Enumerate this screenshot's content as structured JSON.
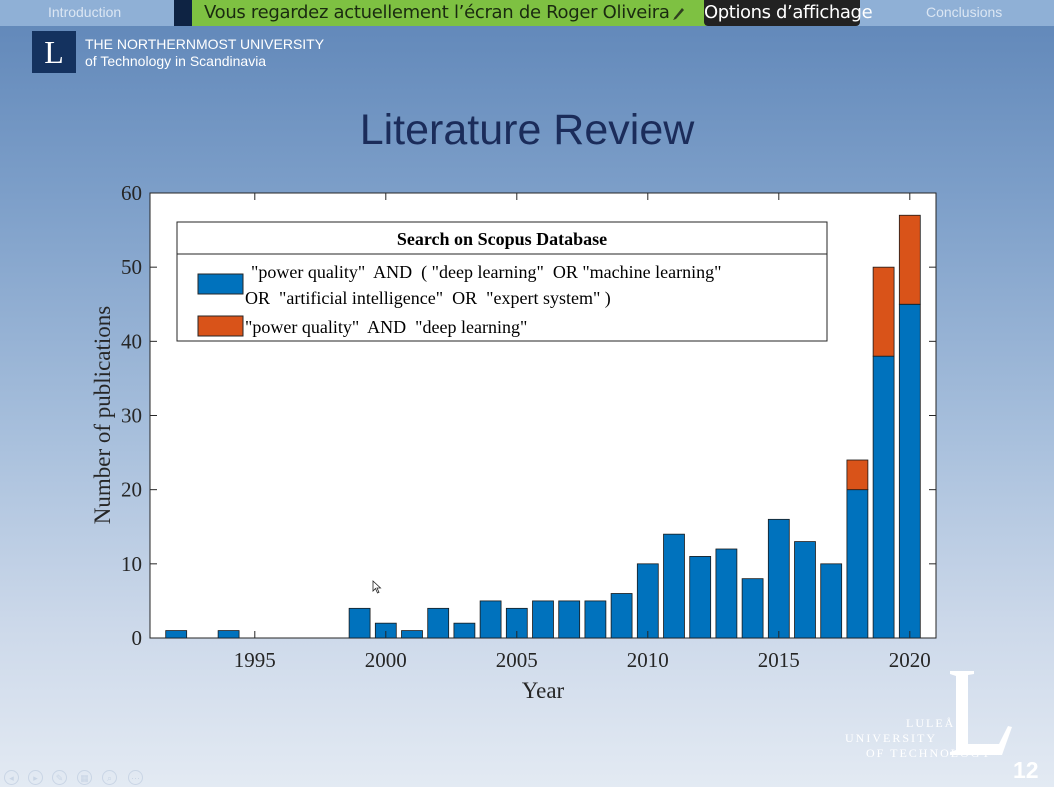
{
  "nav": {
    "left_section": "Introduction",
    "right_section": "Conclusions"
  },
  "share_banner": {
    "text": "Vous regardez actuellement l’écran de Roger Oliveira",
    "options_label": "Options d’affichage"
  },
  "header": {
    "logo_letter": "L",
    "line1": "THE NORTHERNMOST UNIVERSITY",
    "line2": "of Technology in Scandinavia"
  },
  "slide": {
    "title": "Literature Review",
    "page_number": "12"
  },
  "footer_logo": {
    "line1": "LULEÅ",
    "line2": "UNIVERSITY",
    "line3": "OF TECHNOLOGY"
  },
  "colors": {
    "series1": "#0072bd",
    "series2": "#d95319"
  },
  "controls": [
    "previous-icon",
    "next-icon",
    "pen-icon",
    "slides-icon",
    "zoom-icon",
    "more-icon"
  ],
  "chart_data": {
    "type": "bar",
    "stacked": true,
    "x": [
      1992,
      1994,
      1999,
      2000,
      2001,
      2002,
      2003,
      2004,
      2005,
      2006,
      2007,
      2008,
      2009,
      2010,
      2011,
      2012,
      2013,
      2014,
      2015,
      2016,
      2017,
      2018,
      2019,
      2020
    ],
    "series": [
      {
        "name": "\"power quality\"  AND  ( \"deep learning\"  OR \"machine learning\"  OR  \"artificial intelligence\"  OR  \"expert system\" )",
        "legend_line1": "\"power quality\"  AND  ( \"deep learning\"  OR \"machine learning\"",
        "legend_line2": "OR  \"artificial intelligence\"  OR  \"expert system\" )",
        "values": [
          1,
          1,
          4,
          2,
          1,
          4,
          2,
          5,
          4,
          5,
          5,
          5,
          6,
          10,
          14,
          11,
          12,
          8,
          16,
          13,
          10,
          20,
          38,
          45
        ]
      },
      {
        "name": "\"power quality\"  AND  \"deep learning\"",
        "values": [
          0,
          0,
          0,
          0,
          0,
          0,
          0,
          0,
          0,
          0,
          0,
          0,
          0,
          0,
          0,
          0,
          0,
          0,
          0,
          0,
          0,
          4,
          12,
          12
        ]
      }
    ],
    "legend_title": "Search on Scopus Database",
    "legend_position": "top-left",
    "xlabel": "Year",
    "ylabel": "Number of publications",
    "xlim": [
      1991,
      2021
    ],
    "ylim": [
      0,
      60
    ],
    "xticks": [
      1995,
      2000,
      2005,
      2010,
      2015,
      2020
    ],
    "yticks": [
      0,
      10,
      20,
      30,
      40,
      50,
      60
    ],
    "grid": false
  }
}
